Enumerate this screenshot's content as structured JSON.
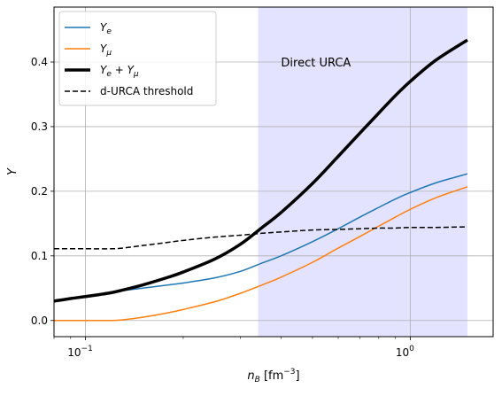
{
  "chart_data": {
    "type": "line",
    "title": "",
    "xlabel": "n_B [fm^-3]",
    "ylabel": "Y",
    "xscale": "log",
    "xlim": [
      0.08,
      1.8
    ],
    "ylim": [
      -0.025,
      0.485
    ],
    "grid": true,
    "legend_position": "upper-left",
    "xticks": [
      {
        "value": 0.1,
        "base": "10",
        "exp": "−1"
      },
      {
        "value": 1.0,
        "base": "10",
        "exp": "0"
      }
    ],
    "yticks": [
      {
        "value": 0.0,
        "label": "0.0"
      },
      {
        "value": 0.1,
        "label": "0.1"
      },
      {
        "value": 0.2,
        "label": "0.2"
      },
      {
        "value": 0.3,
        "label": "0.3"
      },
      {
        "value": 0.4,
        "label": "0.4"
      }
    ],
    "shaded_region": {
      "x_start": 0.34,
      "x_end": 1.5,
      "color": "#e3e3ff",
      "label": "Direct URCA",
      "label_x": 0.4,
      "label_y": 0.4
    },
    "series": [
      {
        "name": "Y_e",
        "color": "#1f77b4",
        "width": 1.5,
        "dash": "",
        "x": [
          0.08,
          0.09,
          0.1,
          0.11,
          0.12,
          0.13,
          0.15,
          0.18,
          0.2,
          0.25,
          0.3,
          0.35,
          0.4,
          0.5,
          0.6,
          0.7,
          0.8,
          0.9,
          1.0,
          1.2,
          1.5
        ],
        "y": [
          0.03,
          0.034,
          0.037,
          0.04,
          0.043,
          0.046,
          0.05,
          0.055,
          0.058,
          0.066,
          0.076,
          0.089,
          0.1,
          0.122,
          0.142,
          0.16,
          0.175,
          0.188,
          0.198,
          0.213,
          0.227
        ]
      },
      {
        "name": "Y_mu",
        "color": "#ff7f0e",
        "width": 1.5,
        "dash": "",
        "x": [
          0.08,
          0.1,
          0.12,
          0.13,
          0.15,
          0.18,
          0.2,
          0.25,
          0.3,
          0.35,
          0.4,
          0.5,
          0.6,
          0.7,
          0.8,
          0.9,
          1.0,
          1.2,
          1.5
        ],
        "y": [
          0.0,
          0.0,
          0.0,
          0.001,
          0.005,
          0.012,
          0.017,
          0.029,
          0.042,
          0.055,
          0.067,
          0.09,
          0.112,
          0.13,
          0.146,
          0.16,
          0.172,
          0.19,
          0.207
        ]
      },
      {
        "name": "Y_e + Y_mu",
        "color": "#000000",
        "width": 3.5,
        "dash": "",
        "x": [
          0.08,
          0.09,
          0.1,
          0.11,
          0.12,
          0.13,
          0.15,
          0.18,
          0.2,
          0.25,
          0.3,
          0.35,
          0.4,
          0.5,
          0.6,
          0.7,
          0.8,
          0.9,
          1.0,
          1.2,
          1.5
        ],
        "y": [
          0.03,
          0.034,
          0.037,
          0.04,
          0.043,
          0.047,
          0.055,
          0.067,
          0.075,
          0.095,
          0.118,
          0.144,
          0.167,
          0.212,
          0.254,
          0.29,
          0.321,
          0.348,
          0.37,
          0.403,
          0.434
        ]
      },
      {
        "name": "d-URCA threshold",
        "color": "#000000",
        "width": 1.5,
        "dash": "6,3",
        "x": [
          0.08,
          0.1,
          0.12,
          0.13,
          0.15,
          0.18,
          0.2,
          0.25,
          0.3,
          0.35,
          0.4,
          0.5,
          0.6,
          0.7,
          0.8,
          0.9,
          1.0,
          1.2,
          1.5
        ],
        "y": [
          0.111,
          0.111,
          0.111,
          0.112,
          0.116,
          0.121,
          0.124,
          0.129,
          0.132,
          0.135,
          0.137,
          0.14,
          0.141,
          0.142,
          0.143,
          0.143,
          0.144,
          0.144,
          0.145
        ]
      }
    ],
    "legend": [
      {
        "base": "Y",
        "sub": "e",
        "extra": "",
        "color": "#1f77b4",
        "width": 1.5,
        "dash": ""
      },
      {
        "base": "Y",
        "sub": "μ",
        "extra": "",
        "color": "#ff7f0e",
        "width": 1.5,
        "dash": ""
      },
      {
        "base": "Y",
        "sub": "e",
        "extra": " + Y",
        "sub2": "μ",
        "color": "#000000",
        "width": 3.5,
        "dash": ""
      },
      {
        "plain": "d-URCA threshold",
        "color": "#000000",
        "width": 1.5,
        "dash": "6,3"
      }
    ]
  }
}
